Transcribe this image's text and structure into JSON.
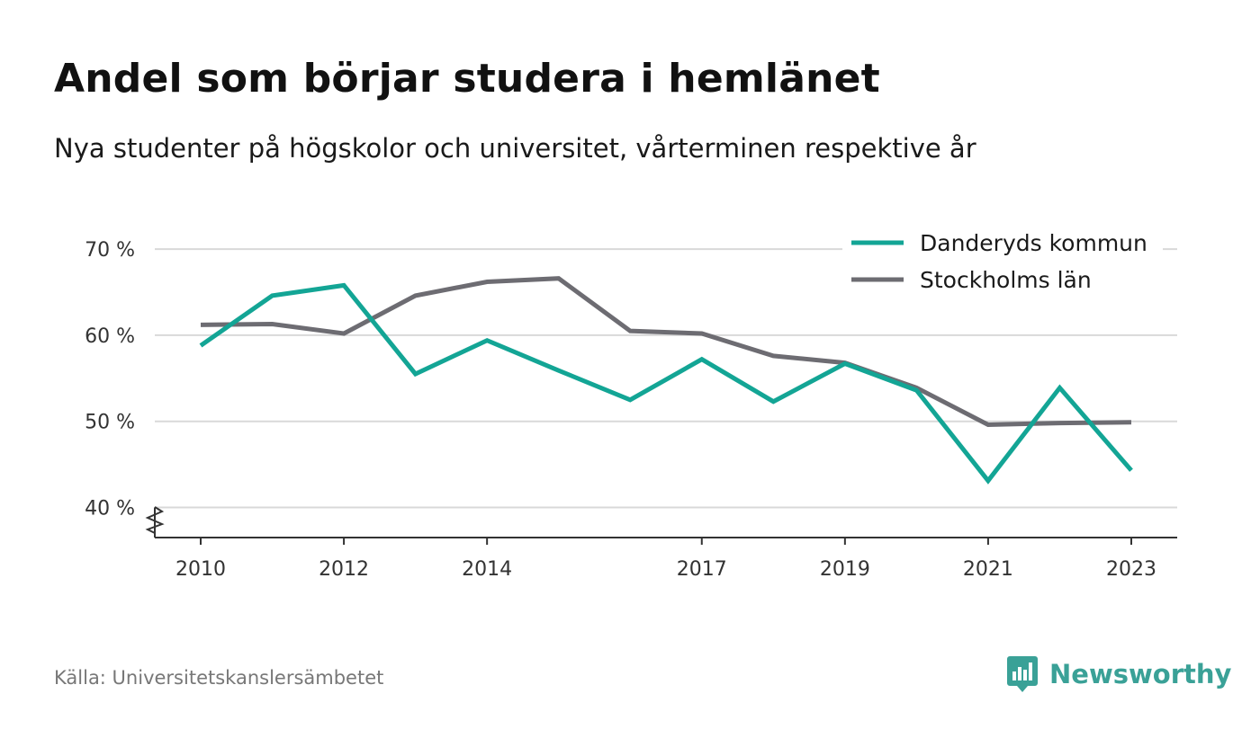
{
  "title": "Andel som börjar studera i hemlänet",
  "subtitle": "Nya studenter på högskolor och universitet, vårterminen respektive år",
  "source": "Källa: Universitetskanslersämbetet",
  "brand": "Newsworthy",
  "colors": {
    "series1": "#13a595",
    "series2": "#6d6c72",
    "grid": "#d9d9d9",
    "axis": "#333333",
    "brand": "#3aa197"
  },
  "chart_data": {
    "type": "line",
    "title": "Andel som börjar studera i hemlänet",
    "subtitle": "Nya studenter på högskolor och universitet, vårterminen respektive år",
    "x": [
      2010,
      2011,
      2012,
      2013,
      2014,
      2015,
      2016,
      2017,
      2018,
      2019,
      2020,
      2021,
      2022,
      2023
    ],
    "x_tick_labels": [
      "2010",
      "2012",
      "2014",
      "2017",
      "2019",
      "2021",
      "2023"
    ],
    "y_tick_labels": [
      "40 %",
      "50 %",
      "60 %",
      "70 %"
    ],
    "y_ticks": [
      40,
      50,
      60,
      70
    ],
    "ylim": [
      36.5,
      72
    ],
    "y_axis_break": true,
    "grid": true,
    "legend_position": "top-right",
    "series": [
      {
        "name": "Danderyds kommun",
        "color": "#13a595",
        "values": [
          58.8,
          64.6,
          65.8,
          55.5,
          59.4,
          55.9,
          52.5,
          57.2,
          52.3,
          56.7,
          53.6,
          43.1,
          53.9,
          44.3
        ]
      },
      {
        "name": "Stockholms län",
        "color": "#6d6c72",
        "values": [
          61.2,
          61.3,
          60.2,
          64.6,
          66.2,
          66.6,
          60.5,
          60.2,
          57.6,
          56.8,
          53.9,
          49.6,
          49.8,
          49.9
        ]
      }
    ]
  }
}
